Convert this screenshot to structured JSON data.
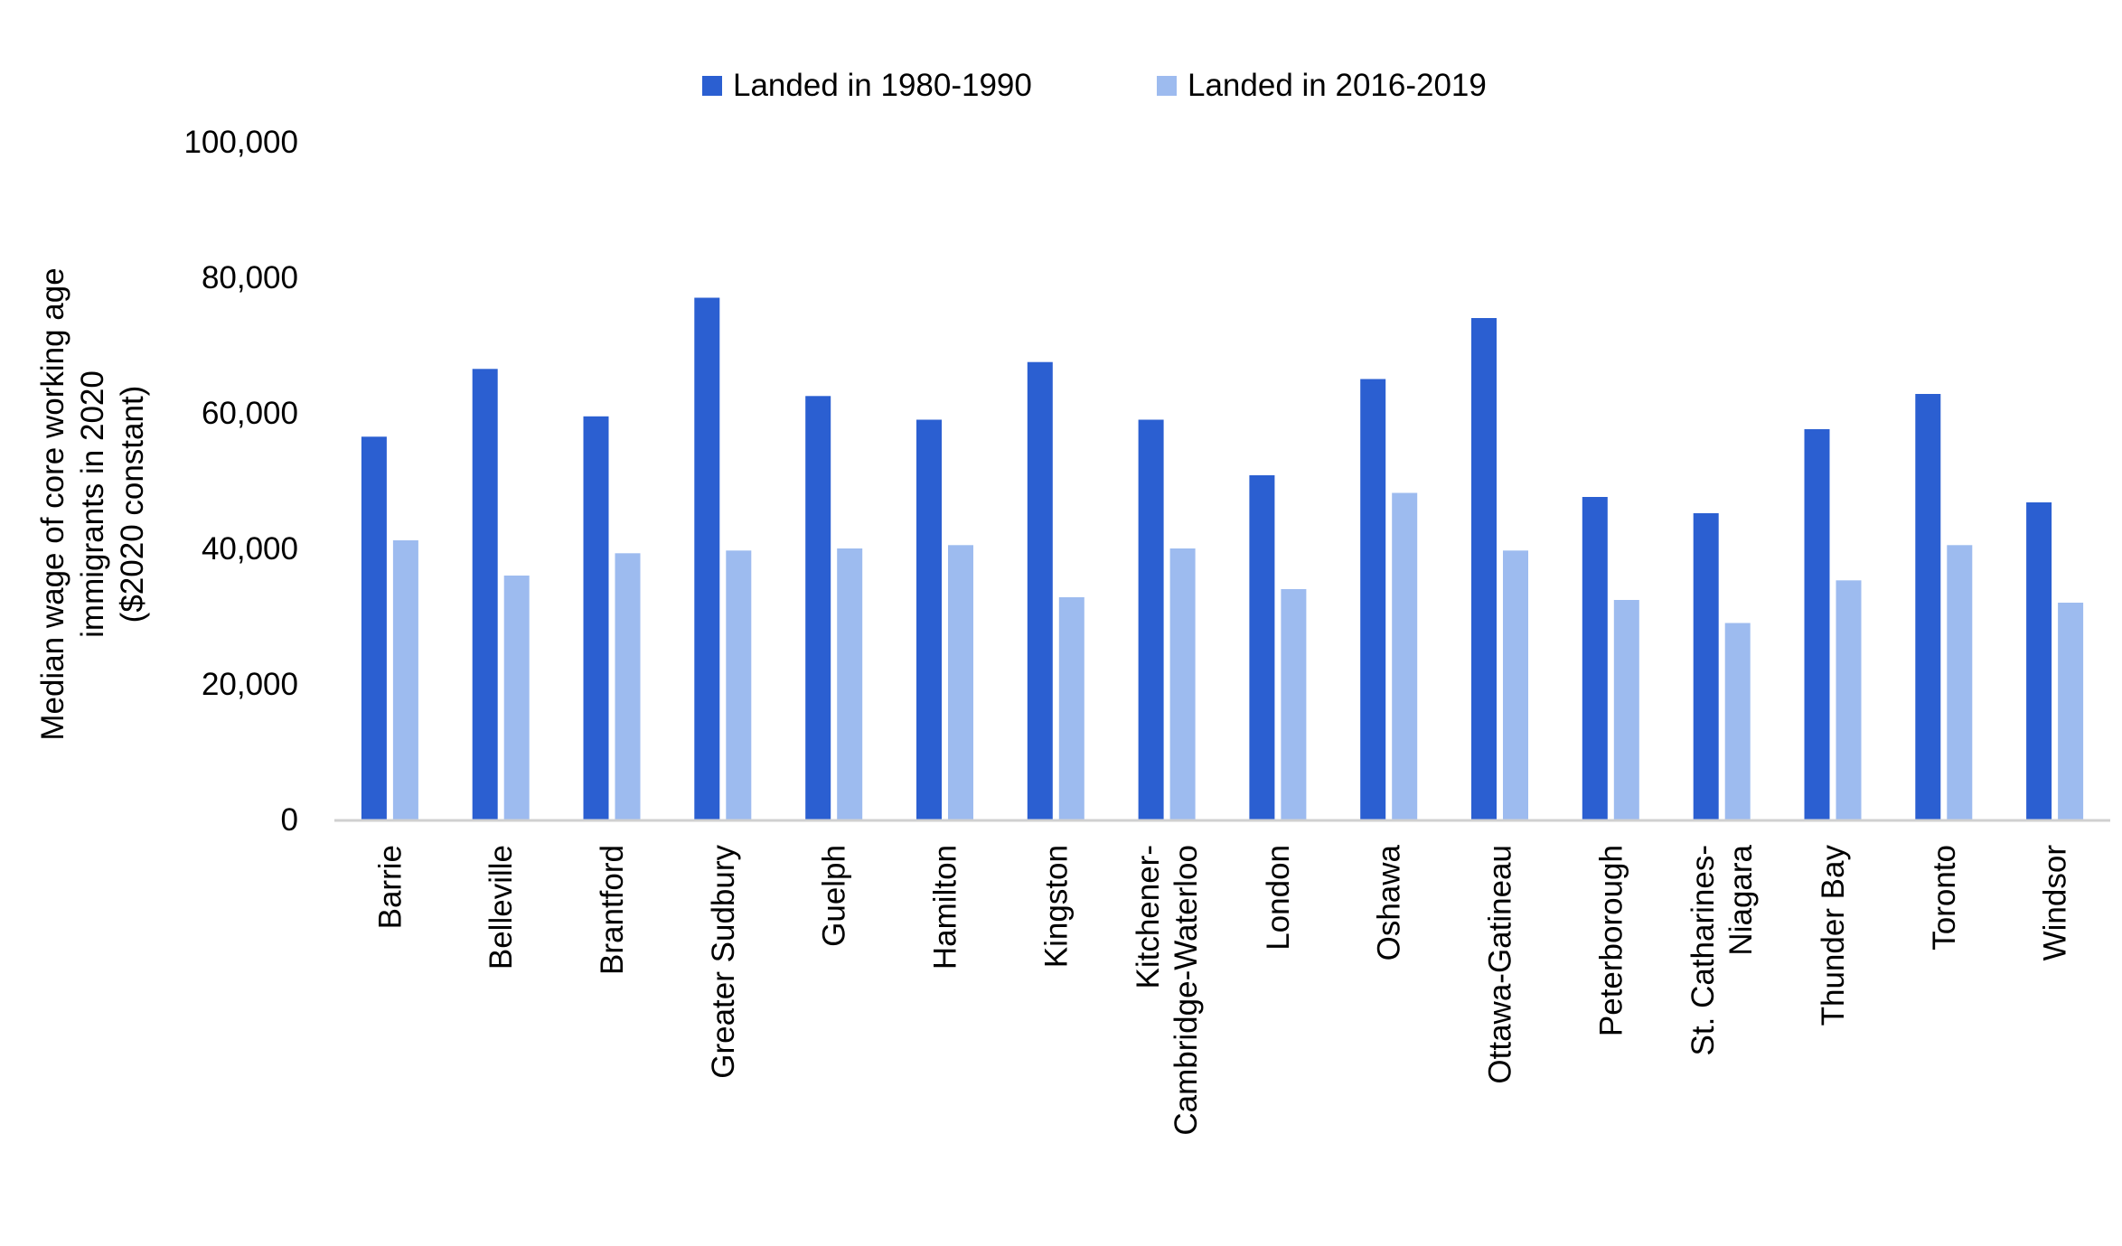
{
  "chart_data": {
    "type": "bar",
    "title": "",
    "xlabel": "",
    "ylabel": "Median wage of core working age immigrants in 2020 ($2020 constant)",
    "ylabel_lines": [
      "Median wage of core working age",
      "immigrants in 2020",
      "($2020 constant)"
    ],
    "ylim": [
      0,
      100000
    ],
    "yticks": [
      0,
      20000,
      40000,
      60000,
      80000,
      100000
    ],
    "ytick_labels": [
      "0",
      "20,000",
      "40,000",
      "60,000",
      "80,000",
      "100,000"
    ],
    "grid": false,
    "legend_position": "top-center",
    "categories": [
      "Barrie",
      "Belleville",
      "Brantford",
      "Greater Sudbury",
      "Guelph",
      "Hamilton",
      "Kingston",
      "Kitchener-Cambridge-Waterloo",
      "London",
      "Oshawa",
      "Ottawa-Gatineau",
      "Peterborough",
      "St. Catharines-Niagara",
      "Thunder Bay",
      "Toronto",
      "Windsor"
    ],
    "category_label_lines": [
      [
        "Barrie"
      ],
      [
        "Belleville"
      ],
      [
        "Brantford"
      ],
      [
        "Greater Sudbury"
      ],
      [
        "Guelph"
      ],
      [
        "Hamilton"
      ],
      [
        "Kingston"
      ],
      [
        "Kitchener-",
        "Cambridge-Waterloo"
      ],
      [
        "London"
      ],
      [
        "Oshawa"
      ],
      [
        "Ottawa-Gatineau"
      ],
      [
        "Peterborough"
      ],
      [
        "St. Catharines-",
        "Niagara"
      ],
      [
        "Thunder Bay"
      ],
      [
        "Toronto"
      ],
      [
        "Windsor"
      ]
    ],
    "series": [
      {
        "name": "Landed in 1980-1990",
        "color": "#2b5fd1",
        "values": [
          56500,
          66500,
          59500,
          77000,
          62500,
          59000,
          67500,
          59000,
          50800,
          65000,
          74000,
          47600,
          45200,
          57600,
          62800,
          46800
        ]
      },
      {
        "name": "Landed in 2016-2019",
        "color": "#9dbbef",
        "values": [
          41200,
          36000,
          39300,
          39700,
          40000,
          40500,
          32800,
          40000,
          34000,
          48200,
          39700,
          32400,
          29000,
          35300,
          40500,
          32000
        ]
      }
    ]
  }
}
